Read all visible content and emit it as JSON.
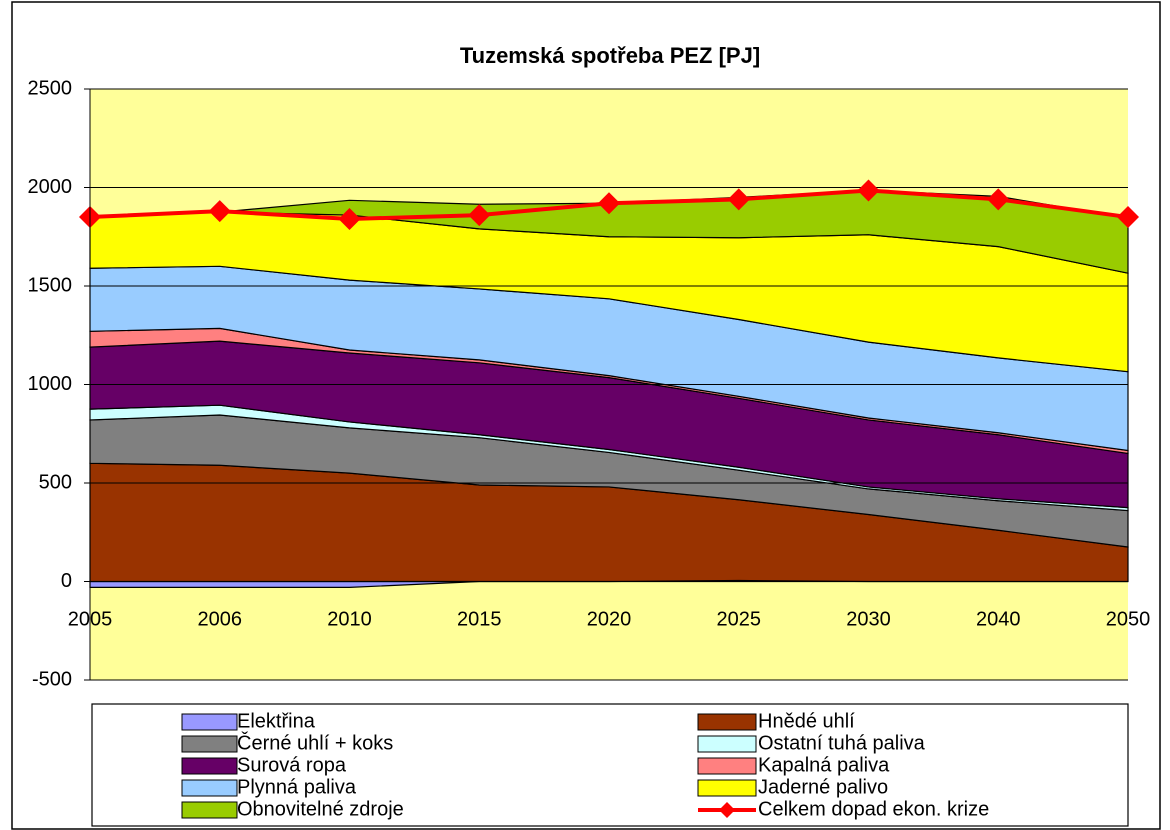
{
  "chart_data": {
    "type": "area",
    "title": "Tuzemská spotřeba PEZ [PJ]",
    "categories": [
      "2005",
      "2006",
      "2010",
      "2015",
      "2020",
      "2025",
      "2030",
      "2040",
      "2050"
    ],
    "ylim": [
      -500,
      2500
    ],
    "yticks": [
      -500,
      0,
      500,
      1000,
      1500,
      2000,
      2500
    ],
    "grid": true,
    "plot_background": "#ffff99",
    "legend": "bottom",
    "series": [
      {
        "name": "Elektřina",
        "color": "#9999ff",
        "values": [
          -30,
          -30,
          -30,
          0,
          0,
          5,
          0,
          0,
          0
        ]
      },
      {
        "name": "Hnědé uhlí",
        "color": "#993300",
        "values": [
          600,
          590,
          550,
          490,
          480,
          410,
          340,
          260,
          175
        ]
      },
      {
        "name": "Černé uhlí + koks",
        "color": "#808080",
        "values": [
          220,
          255,
          230,
          240,
          175,
          150,
          130,
          150,
          185
        ]
      },
      {
        "name": "Ostatní tuhá paliva",
        "color": "#ccffff",
        "values": [
          55,
          50,
          30,
          15,
          15,
          15,
          10,
          10,
          15
        ]
      },
      {
        "name": "Surová ropa",
        "color": "#660066",
        "values": [
          315,
          325,
          350,
          365,
          365,
          350,
          340,
          325,
          275
        ]
      },
      {
        "name": "Kapalná paliva",
        "color": "#ff8080",
        "values": [
          80,
          65,
          15,
          15,
          10,
          10,
          10,
          10,
          15
        ]
      },
      {
        "name": "Plynná paliva",
        "color": "#99ccff",
        "values": [
          320,
          315,
          355,
          360,
          390,
          390,
          385,
          380,
          400
        ]
      },
      {
        "name": "Jaderné palivo",
        "color": "#ffff00",
        "values": [
          260,
          275,
          330,
          305,
          315,
          415,
          545,
          565,
          500
        ]
      },
      {
        "name": "Obnovitelné zdroje",
        "color": "#99cc00",
        "values": [
          0,
          0,
          75,
          125,
          170,
          205,
          225,
          255,
          280
        ]
      },
      {
        "name": "Celkem dopad ekon. krize",
        "color": "#ff0000",
        "type": "line",
        "values": [
          1850,
          1880,
          1840,
          1860,
          1920,
          1940,
          1985,
          1940,
          1850
        ]
      }
    ]
  }
}
